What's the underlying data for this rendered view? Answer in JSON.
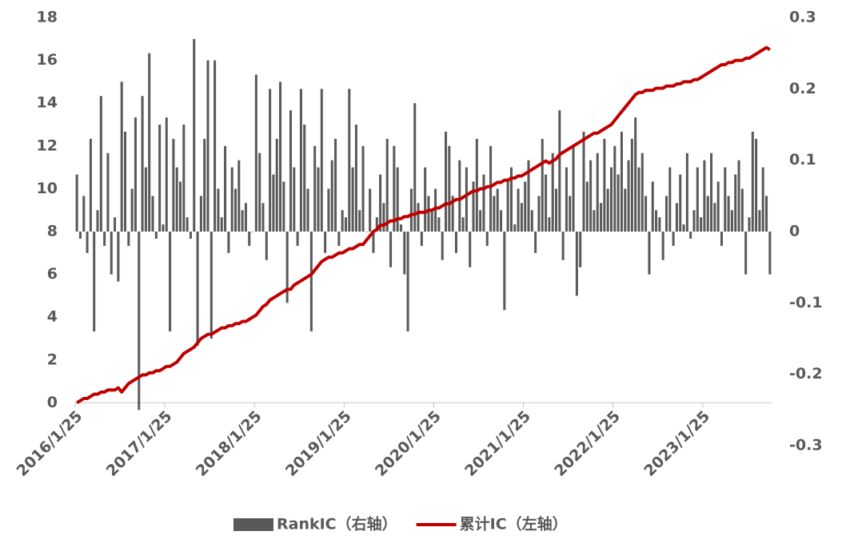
{
  "chart_data": {
    "type": "combo",
    "categories": [
      "2016/1/25",
      null,
      null,
      null,
      null,
      null,
      null,
      null,
      null,
      null,
      null,
      null,
      null,
      null,
      null,
      null,
      null,
      null,
      null,
      null,
      null,
      null,
      null,
      null,
      null,
      null,
      "2017/1/25",
      null,
      null,
      null,
      null,
      null,
      null,
      null,
      null,
      null,
      null,
      null,
      null,
      null,
      null,
      null,
      null,
      null,
      null,
      null,
      null,
      null,
      null,
      null,
      null,
      null,
      "2018/1/25",
      null,
      null,
      null,
      null,
      null,
      null,
      null,
      null,
      null,
      null,
      null,
      null,
      null,
      null,
      null,
      null,
      null,
      null,
      null,
      null,
      null,
      null,
      null,
      null,
      null,
      "2019/1/25",
      null,
      null,
      null,
      null,
      null,
      null,
      null,
      null,
      null,
      null,
      null,
      null,
      null,
      null,
      null,
      null,
      null,
      null,
      null,
      null,
      null,
      null,
      null,
      null,
      null,
      "2020/1/25",
      null,
      null,
      null,
      null,
      null,
      null,
      null,
      null,
      null,
      null,
      null,
      null,
      null,
      null,
      null,
      null,
      null,
      null,
      null,
      null,
      null,
      null,
      null,
      null,
      null,
      "2021/1/25",
      null,
      null,
      null,
      null,
      null,
      null,
      null,
      null,
      null,
      null,
      null,
      null,
      null,
      null,
      null,
      null,
      null,
      null,
      null,
      null,
      null,
      null,
      null,
      null,
      null,
      "2022/1/25",
      null,
      null,
      null,
      null,
      null,
      null,
      null,
      null,
      null,
      null,
      null,
      null,
      null,
      null,
      null,
      null,
      null,
      null,
      null,
      null,
      null,
      null,
      null,
      null,
      null,
      "2023/1/25",
      null,
      null,
      null,
      null,
      null,
      null,
      null,
      null,
      null,
      null,
      null,
      null,
      null,
      null,
      null,
      null,
      null,
      null,
      null
    ],
    "series": [
      {
        "name": "RankIC（右轴）",
        "type": "bar",
        "axis": "y2",
        "color": "#595959",
        "values": [
          0.08,
          -0.01,
          0.05,
          -0.03,
          0.13,
          -0.14,
          0.03,
          0.19,
          -0.02,
          0.11,
          -0.06,
          0.02,
          -0.07,
          0.21,
          0.14,
          -0.02,
          0.06,
          0.16,
          -0.25,
          0.19,
          0.09,
          0.25,
          0.05,
          -0.01,
          0.15,
          0.01,
          0.16,
          -0.14,
          0.13,
          0.09,
          0.07,
          0.15,
          0.02,
          -0.01,
          0.27,
          -0.16,
          0.05,
          0.13,
          0.24,
          -0.15,
          0.24,
          0.06,
          0.02,
          0.12,
          -0.03,
          0.09,
          0.06,
          0.1,
          0.03,
          0.04,
          -0.02,
          0.0,
          0.22,
          0.11,
          0.04,
          -0.04,
          0.2,
          0.08,
          0.13,
          0.21,
          0.07,
          -0.1,
          0.17,
          0.09,
          -0.02,
          0.2,
          0.15,
          0.06,
          -0.14,
          0.12,
          0.09,
          0.2,
          -0.03,
          0.06,
          0.1,
          0.13,
          -0.02,
          0.03,
          0.02,
          0.2,
          0.09,
          0.15,
          0.03,
          0.12,
          0.0,
          0.06,
          -0.03,
          0.02,
          0.08,
          0.04,
          0.13,
          -0.05,
          0.12,
          0.09,
          0.01,
          -0.06,
          -0.14,
          0.06,
          0.18,
          0.04,
          -0.02,
          0.09,
          0.05,
          0.03,
          0.06,
          0.02,
          -0.04,
          0.14,
          0.12,
          0.05,
          -0.03,
          0.1,
          0.02,
          0.09,
          -0.05,
          0.07,
          0.13,
          0.03,
          0.08,
          -0.02,
          0.12,
          0.05,
          0.06,
          0.03,
          -0.11,
          0.07,
          0.09,
          0.01,
          0.06,
          0.04,
          0.07,
          0.1,
          0.03,
          -0.03,
          0.05,
          0.13,
          0.08,
          0.02,
          0.11,
          0.06,
          0.17,
          -0.04,
          0.09,
          0.05,
          0.12,
          -0.09,
          -0.05,
          0.14,
          0.07,
          0.1,
          0.03,
          0.11,
          0.04,
          0.13,
          0.06,
          0.09,
          0.12,
          0.08,
          0.14,
          0.06,
          0.1,
          0.13,
          0.16,
          0.09,
          0.11,
          0.05,
          -0.06,
          0.07,
          0.03,
          0.02,
          -0.04,
          0.05,
          0.09,
          -0.02,
          0.04,
          0.08,
          0.01,
          0.11,
          -0.01,
          0.03,
          0.09,
          0.02,
          0.1,
          0.05,
          0.11,
          0.04,
          0.07,
          -0.02,
          0.09,
          0.05,
          0.03,
          0.08,
          0.1,
          0.06,
          -0.06,
          0.02,
          0.14,
          0.13,
          0.03,
          0.09,
          0.05,
          -0.06
        ]
      },
      {
        "name": "累计IC（左轴）",
        "type": "line",
        "axis": "y",
        "color": "#c00000",
        "values": [
          0.0,
          0.1,
          0.2,
          0.2,
          0.3,
          0.4,
          0.4,
          0.5,
          0.5,
          0.6,
          0.6,
          0.6,
          0.7,
          0.5,
          0.7,
          0.9,
          1.0,
          1.1,
          1.2,
          1.3,
          1.3,
          1.4,
          1.4,
          1.5,
          1.5,
          1.6,
          1.7,
          1.7,
          1.8,
          1.9,
          2.1,
          2.3,
          2.4,
          2.5,
          2.6,
          2.8,
          3.0,
          3.1,
          3.2,
          3.2,
          3.3,
          3.4,
          3.5,
          3.5,
          3.6,
          3.6,
          3.7,
          3.7,
          3.8,
          3.8,
          3.9,
          4.0,
          4.1,
          4.3,
          4.5,
          4.6,
          4.8,
          4.9,
          5.0,
          5.1,
          5.2,
          5.3,
          5.3,
          5.5,
          5.6,
          5.7,
          5.8,
          5.9,
          6.0,
          6.2,
          6.4,
          6.6,
          6.7,
          6.8,
          6.8,
          6.9,
          7.0,
          7.0,
          7.1,
          7.2,
          7.2,
          7.3,
          7.4,
          7.4,
          7.6,
          7.8,
          8.0,
          8.1,
          8.3,
          8.3,
          8.4,
          8.5,
          8.5,
          8.6,
          8.6,
          8.7,
          8.7,
          8.8,
          8.8,
          8.9,
          8.9,
          8.9,
          9.0,
          9.0,
          9.1,
          9.1,
          9.2,
          9.3,
          9.3,
          9.4,
          9.5,
          9.5,
          9.6,
          9.7,
          9.8,
          9.9,
          9.9,
          10.0,
          10.0,
          10.1,
          10.1,
          10.2,
          10.3,
          10.3,
          10.4,
          10.4,
          10.5,
          10.5,
          10.6,
          10.6,
          10.7,
          10.8,
          10.9,
          11.0,
          11.1,
          11.2,
          11.3,
          11.2,
          11.3,
          11.4,
          11.6,
          11.7,
          11.8,
          11.9,
          12.0,
          12.1,
          12.2,
          12.3,
          12.4,
          12.5,
          12.6,
          12.6,
          12.7,
          12.8,
          12.9,
          13.0,
          13.2,
          13.4,
          13.6,
          13.8,
          14.0,
          14.2,
          14.4,
          14.5,
          14.5,
          14.6,
          14.6,
          14.6,
          14.7,
          14.7,
          14.7,
          14.8,
          14.8,
          14.8,
          14.9,
          14.9,
          15.0,
          15.0,
          15.0,
          15.1,
          15.1,
          15.2,
          15.3,
          15.4,
          15.5,
          15.6,
          15.7,
          15.8,
          15.8,
          15.9,
          15.9,
          16.0,
          16.0,
          16.0,
          16.1,
          16.1,
          16.2,
          16.3,
          16.4,
          16.5,
          16.6,
          16.5
        ]
      }
    ],
    "ylim": [
      -2,
      18
    ],
    "yticks": [
      0,
      2,
      4,
      6,
      8,
      10,
      12,
      14,
      16,
      18
    ],
    "y2lim": [
      -0.3,
      0.3
    ],
    "y2ticks": [
      -0.3,
      -0.2,
      -0.1,
      0,
      0.1,
      0.2,
      0.3
    ],
    "legend": "bottom"
  }
}
